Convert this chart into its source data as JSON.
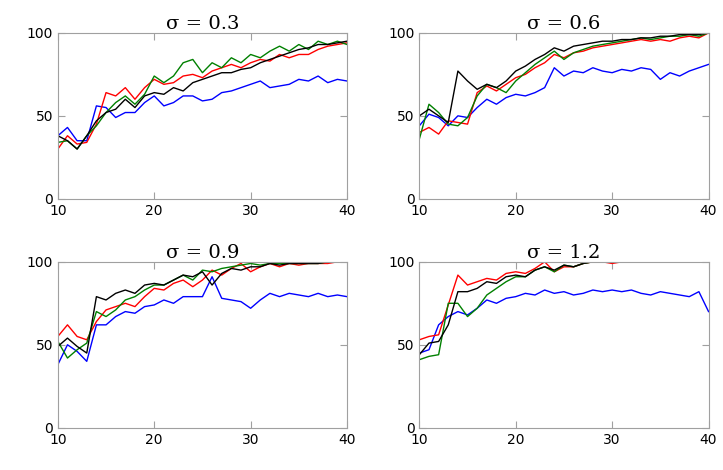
{
  "titles": [
    "σ = 0.3",
    "σ = 0.6",
    "σ = 0.9",
    "σ = 1.2"
  ],
  "xlim": [
    10,
    40
  ],
  "ylim": [
    0,
    100
  ],
  "xticks": [
    10,
    20,
    30,
    40
  ],
  "yticks": [
    0,
    50,
    100
  ],
  "colors": [
    "blue",
    "red",
    "green",
    "black"
  ],
  "x": [
    10,
    11,
    12,
    13,
    14,
    15,
    16,
    17,
    18,
    19,
    20,
    21,
    22,
    23,
    24,
    25,
    26,
    27,
    28,
    29,
    30,
    31,
    32,
    33,
    34,
    35,
    36,
    37,
    38,
    39,
    40
  ],
  "data": {
    "sigma03": {
      "blue": [
        38,
        43,
        35,
        35,
        56,
        55,
        49,
        52,
        52,
        58,
        62,
        56,
        58,
        62,
        62,
        59,
        60,
        64,
        65,
        67,
        69,
        71,
        67,
        68,
        69,
        72,
        71,
        74,
        70,
        72,
        71
      ],
      "red": [
        30,
        38,
        33,
        34,
        45,
        64,
        62,
        67,
        60,
        67,
        72,
        69,
        70,
        74,
        75,
        73,
        77,
        79,
        81,
        79,
        82,
        84,
        83,
        87,
        85,
        87,
        87,
        90,
        92,
        93,
        94
      ],
      "green": [
        34,
        35,
        30,
        38,
        44,
        52,
        58,
        62,
        57,
        63,
        74,
        70,
        74,
        82,
        84,
        76,
        82,
        79,
        85,
        82,
        87,
        85,
        89,
        92,
        89,
        93,
        90,
        95,
        93,
        95,
        93
      ],
      "black": [
        38,
        35,
        30,
        38,
        47,
        52,
        54,
        60,
        55,
        62,
        64,
        63,
        67,
        65,
        70,
        72,
        74,
        76,
        76,
        78,
        79,
        82,
        84,
        86,
        88,
        90,
        91,
        93,
        93,
        94,
        95
      ]
    },
    "sigma06": {
      "blue": [
        44,
        51,
        49,
        44,
        50,
        49,
        55,
        60,
        57,
        61,
        63,
        62,
        64,
        67,
        79,
        74,
        77,
        76,
        79,
        77,
        76,
        78,
        77,
        79,
        78,
        72,
        76,
        74,
        77,
        79,
        81
      ],
      "red": [
        40,
        43,
        39,
        47,
        46,
        45,
        64,
        68,
        65,
        69,
        73,
        75,
        79,
        82,
        87,
        85,
        88,
        89,
        91,
        92,
        93,
        94,
        95,
        96,
        95,
        96,
        95,
        97,
        98,
        97,
        100
      ],
      "green": [
        36,
        57,
        52,
        45,
        44,
        49,
        62,
        69,
        67,
        64,
        71,
        76,
        81,
        85,
        89,
        84,
        88,
        90,
        92,
        93,
        94,
        95,
        96,
        97,
        96,
        97,
        98,
        98,
        99,
        98,
        100
      ],
      "black": [
        50,
        54,
        50,
        46,
        77,
        71,
        66,
        69,
        67,
        71,
        77,
        80,
        84,
        87,
        91,
        89,
        92,
        93,
        94,
        95,
        95,
        96,
        96,
        97,
        97,
        98,
        98,
        99,
        99,
        99,
        100
      ]
    },
    "sigma09": {
      "blue": [
        38,
        50,
        46,
        40,
        62,
        62,
        67,
        70,
        69,
        73,
        74,
        77,
        75,
        79,
        79,
        79,
        91,
        78,
        77,
        76,
        72,
        77,
        81,
        79,
        81,
        80,
        79,
        81,
        79,
        80,
        79
      ],
      "red": [
        55,
        62,
        55,
        53,
        64,
        71,
        73,
        75,
        73,
        79,
        84,
        83,
        87,
        89,
        85,
        89,
        95,
        92,
        96,
        99,
        94,
        97,
        99,
        97,
        99,
        98,
        99,
        99,
        99,
        100,
        100
      ],
      "green": [
        52,
        42,
        47,
        51,
        70,
        67,
        71,
        77,
        79,
        83,
        86,
        86,
        89,
        92,
        89,
        95,
        94,
        96,
        97,
        98,
        99,
        98,
        99,
        99,
        99,
        99,
        99,
        99,
        100,
        100,
        100
      ],
      "black": [
        49,
        54,
        49,
        45,
        79,
        77,
        81,
        83,
        81,
        86,
        87,
        86,
        89,
        92,
        91,
        94,
        86,
        93,
        96,
        95,
        97,
        97,
        99,
        98,
        99,
        99,
        99,
        99,
        100,
        100,
        100
      ]
    },
    "sigma12": {
      "blue": [
        45,
        47,
        62,
        67,
        70,
        68,
        72,
        77,
        75,
        78,
        79,
        81,
        80,
        83,
        81,
        82,
        80,
        81,
        83,
        82,
        83,
        82,
        83,
        81,
        80,
        82,
        81,
        80,
        79,
        82,
        70
      ],
      "red": [
        53,
        55,
        56,
        74,
        92,
        86,
        88,
        90,
        89,
        93,
        94,
        93,
        96,
        100,
        94,
        97,
        97,
        99,
        100,
        100,
        99,
        100,
        100,
        100,
        100,
        100,
        100,
        100,
        100,
        100,
        100
      ],
      "green": [
        41,
        43,
        44,
        75,
        75,
        67,
        72,
        80,
        84,
        88,
        91,
        91,
        95,
        97,
        94,
        98,
        97,
        99,
        100,
        100,
        100,
        100,
        100,
        100,
        100,
        100,
        100,
        100,
        100,
        100,
        100
      ],
      "black": [
        44,
        51,
        52,
        62,
        82,
        82,
        84,
        88,
        87,
        91,
        92,
        91,
        95,
        97,
        95,
        98,
        97,
        99,
        100,
        100,
        100,
        100,
        100,
        100,
        100,
        100,
        100,
        100,
        100,
        100,
        100
      ]
    }
  },
  "spine_color": "#a0a0a0",
  "title_fontsize": 14,
  "tick_fontsize": 10,
  "line_width": 1.0,
  "fig_facecolor": "#ffffff"
}
